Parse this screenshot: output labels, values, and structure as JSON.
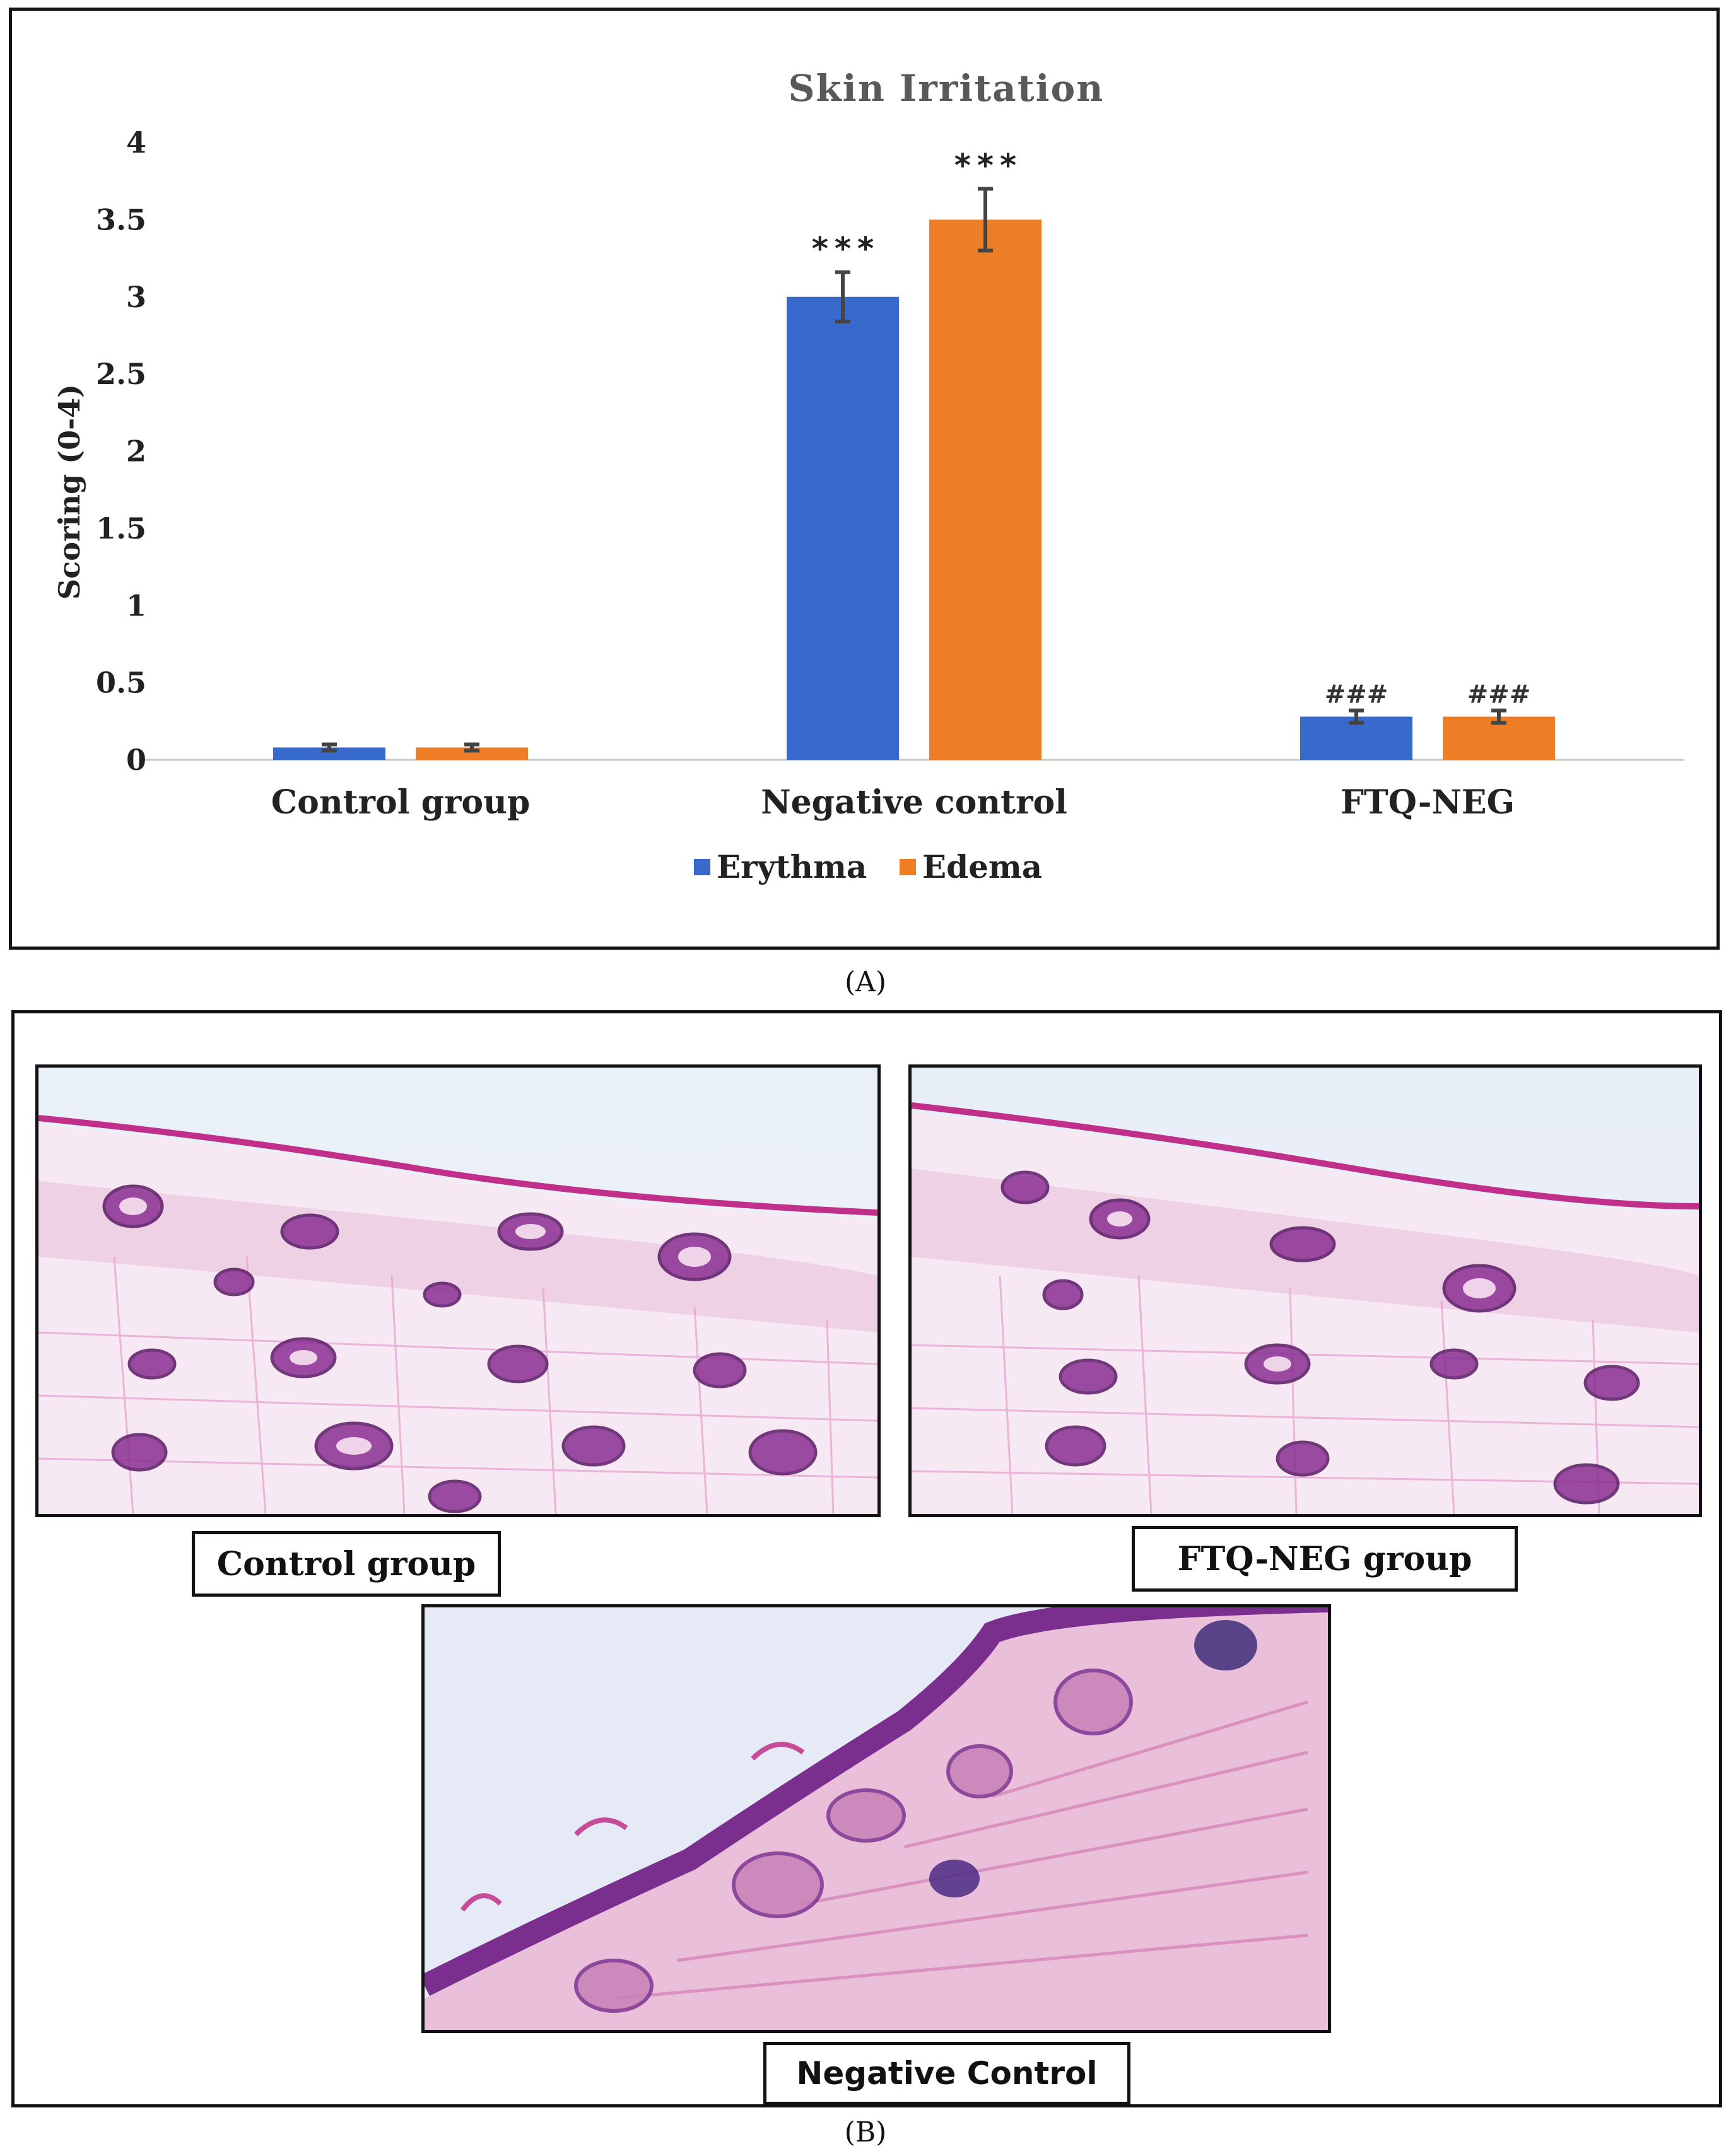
{
  "figure": {
    "panel_a_label": "(A)",
    "panel_b_label": "(B)"
  },
  "chart_data": {
    "type": "bar",
    "title": "Skin Irritation",
    "xlabel": "",
    "ylabel": "Scoring (0-4)",
    "ylim": [
      0,
      4
    ],
    "yticks": [
      "0",
      "0.5",
      "1",
      "1.5",
      "2",
      "2.5",
      "3",
      "3.5",
      "4"
    ],
    "grid": false,
    "legend_position": "bottom",
    "categories": [
      "Control group",
      "Negative control",
      "FTQ-NEG"
    ],
    "series": [
      {
        "name": "Erythma",
        "color": "#3869CC",
        "values": [
          0.08,
          3.0,
          0.28
        ],
        "errors": [
          0.02,
          0.16,
          0.04
        ],
        "annotations": [
          "",
          "***",
          "###"
        ]
      },
      {
        "name": "Edema",
        "color": "#EE7D27",
        "values": [
          0.08,
          3.5,
          0.28
        ],
        "errors": [
          0.02,
          0.2,
          0.04
        ],
        "annotations": [
          "",
          "***",
          "###"
        ]
      }
    ]
  },
  "micrographs": {
    "control": {
      "caption": "Control group"
    },
    "ftq": {
      "caption": "FTQ-NEG group"
    },
    "negative": {
      "caption": "Negative Control"
    }
  }
}
